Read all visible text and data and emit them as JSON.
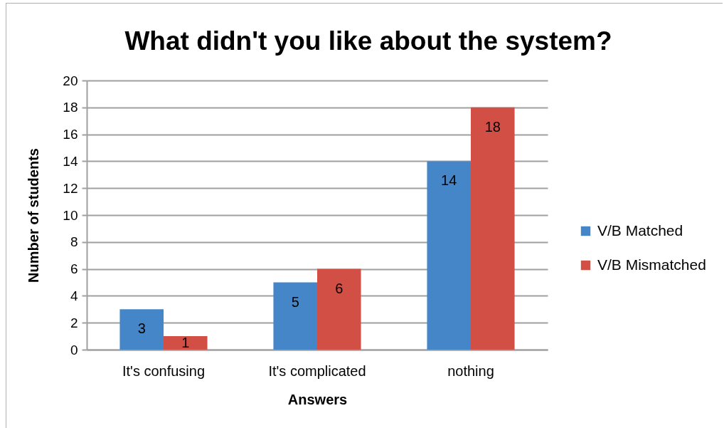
{
  "chart_data": {
    "type": "bar",
    "title": "What didn't you like about the system?",
    "xlabel": "Answers",
    "ylabel": "Number of students",
    "categories": [
      "It's confusing",
      "It's complicated",
      "nothing"
    ],
    "series": [
      {
        "name": "V/B Matched",
        "color": "#4586c9",
        "values": [
          3,
          5,
          14
        ]
      },
      {
        "name": "V/B Mismatched",
        "color": "#d24f45",
        "values": [
          1,
          6,
          18
        ]
      }
    ],
    "ylim": [
      0,
      20
    ],
    "yticks": [
      0,
      2,
      4,
      6,
      8,
      10,
      12,
      14,
      16,
      18,
      20
    ],
    "grid": "y",
    "legend": "right",
    "data_labels": true
  }
}
